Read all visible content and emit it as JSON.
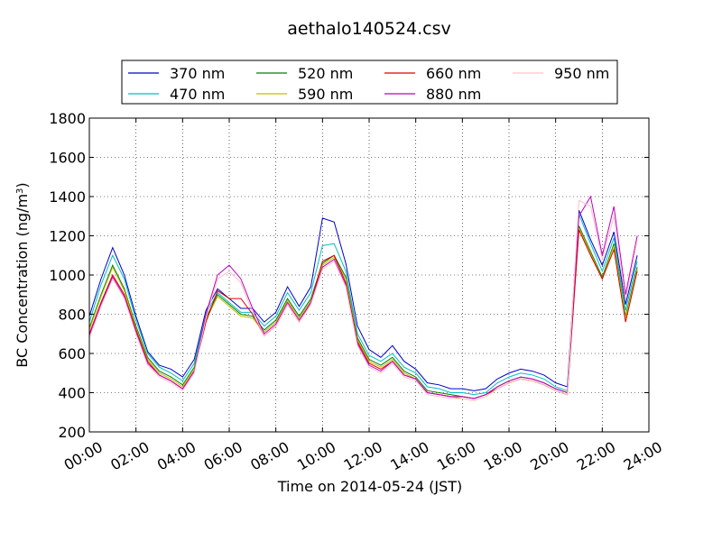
{
  "chart_data": {
    "type": "line",
    "title": "aethalo140524.csv",
    "xlabel": "Time on 2014-05-24 (JST)",
    "ylabel": "BC Concentration (ng/m",
    "ylabel_sup": "3",
    "ylabel_suffix": ")",
    "xlim": [
      0,
      24
    ],
    "ylim": [
      200,
      1800
    ],
    "grid": true,
    "legend_position": "top",
    "x_ticks": [
      "00:00",
      "02:00",
      "04:00",
      "06:00",
      "08:00",
      "10:00",
      "12:00",
      "14:00",
      "16:00",
      "18:00",
      "20:00",
      "22:00",
      "24:00"
    ],
    "y_ticks": [
      200,
      400,
      600,
      800,
      1000,
      1200,
      1400,
      1600,
      1800
    ],
    "x_hours": [
      0,
      0.5,
      1,
      1.5,
      2,
      2.5,
      3,
      3.5,
      4,
      4.5,
      5,
      5.5,
      6,
      6.5,
      7,
      7.5,
      8,
      8.5,
      9,
      9.5,
      10,
      10.5,
      11,
      11.5,
      12,
      12.5,
      13,
      13.5,
      14,
      14.5,
      15,
      15.5,
      16,
      16.5,
      17,
      17.5,
      18,
      18.5,
      19,
      19.5,
      20,
      20.5,
      21,
      21.5,
      22,
      22.5,
      23,
      23.5
    ],
    "series": [
      {
        "name": "370 nm",
        "color": "#0000cc",
        "values": [
          790,
          980,
          1140,
          1000,
          790,
          610,
          540,
          520,
          480,
          570,
          820,
          930,
          880,
          830,
          830,
          760,
          810,
          940,
          840,
          940,
          1290,
          1270,
          1060,
          740,
          620,
          580,
          640,
          560,
          520,
          450,
          440,
          420,
          420,
          410,
          420,
          470,
          500,
          520,
          510,
          490,
          450,
          430,
          1330,
          1180,
          1050,
          1220,
          850,
          1100
        ]
      },
      {
        "name": "470 nm",
        "color": "#00bfbf",
        "values": [
          760,
          950,
          1100,
          980,
          770,
          600,
          530,
          500,
          460,
          550,
          800,
          910,
          860,
          810,
          810,
          740,
          790,
          910,
          820,
          910,
          1150,
          1160,
          1020,
          700,
          590,
          560,
          600,
          530,
          500,
          430,
          420,
          400,
          400,
          390,
          400,
          450,
          480,
          500,
          490,
          470,
          430,
          410,
          1310,
          1160,
          1020,
          1190,
          820,
          1070
        ]
      },
      {
        "name": "520 nm",
        "color": "#008000",
        "values": [
          730,
          900,
          1050,
          930,
          740,
          580,
          510,
          480,
          440,
          530,
          780,
          900,
          850,
          800,
          790,
          720,
          770,
          880,
          790,
          880,
          1060,
          1100,
          990,
          680,
          570,
          540,
          580,
          510,
          480,
          410,
          400,
          390,
          380,
          370,
          390,
          430,
          460,
          480,
          470,
          450,
          420,
          400,
          1250,
          1120,
          990,
          1160,
          790,
          1040
        ]
      },
      {
        "name": "590 nm",
        "color": "#bfbf00",
        "values": [
          720,
          890,
          1040,
          920,
          730,
          570,
          500,
          470,
          430,
          520,
          770,
          890,
          840,
          790,
          780,
          710,
          760,
          870,
          780,
          870,
          1050,
          1090,
          980,
          670,
          560,
          530,
          570,
          500,
          470,
          400,
          390,
          380,
          370,
          360,
          380,
          420,
          450,
          470,
          460,
          440,
          410,
          390,
          1240,
          1110,
          980,
          1150,
          780,
          1030
        ]
      },
      {
        "name": "660 nm",
        "color": "#dd0000",
        "values": [
          700,
          860,
          1000,
          900,
          720,
          560,
          490,
          460,
          420,
          510,
          760,
          920,
          880,
          880,
          800,
          690,
          740,
          850,
          760,
          860,
          1070,
          1100,
          960,
          660,
          550,
          520,
          560,
          490,
          470,
          400,
          390,
          380,
          380,
          370,
          390,
          420,
          450,
          470,
          460,
          440,
          410,
          390,
          1230,
          1100,
          980,
          1130,
          760,
          1020
        ]
      },
      {
        "name": "880 nm",
        "color": "#bf00bf",
        "values": [
          690,
          850,
          990,
          890,
          710,
          550,
          490,
          460,
          420,
          510,
          800,
          1000,
          1050,
          980,
          830,
          700,
          750,
          860,
          770,
          860,
          1040,
          1080,
          950,
          650,
          540,
          510,
          560,
          490,
          470,
          400,
          390,
          380,
          380,
          370,
          390,
          430,
          460,
          480,
          470,
          450,
          420,
          400,
          1300,
          1400,
          1100,
          1350,
          900,
          1200
        ]
      },
      {
        "name": "950 nm",
        "color": "#ffc0cb",
        "values": [
          680,
          840,
          980,
          880,
          700,
          540,
          480,
          450,
          410,
          500,
          780,
          980,
          1020,
          960,
          810,
          690,
          740,
          850,
          760,
          850,
          1030,
          1070,
          940,
          640,
          530,
          500,
          550,
          480,
          460,
          390,
          380,
          370,
          370,
          360,
          380,
          420,
          450,
          470,
          460,
          440,
          410,
          390,
          1380,
          1350,
          1080,
          1300,
          870,
          1180
        ]
      }
    ]
  }
}
